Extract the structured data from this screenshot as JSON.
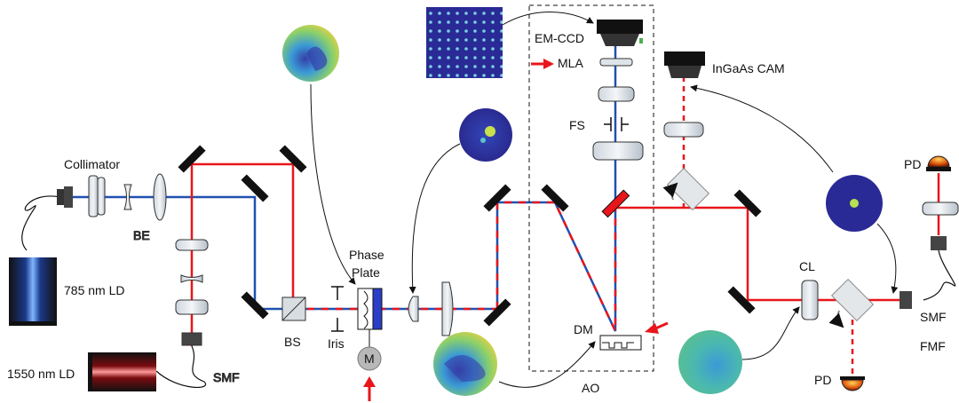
{
  "labels": {
    "collimator": "Collimator",
    "be": "BE",
    "ld785": "785 nm LD",
    "ld1550": "1550 nm LD",
    "smf_left": "SMF",
    "bs": "BS",
    "iris": "Iris",
    "phase_plate_1": "Phase",
    "phase_plate_2": "Plate",
    "motor": "M",
    "emccd": "EM-CCD",
    "mla": "MLA",
    "fs": "FS",
    "ingaas": "InGaAs CAM",
    "dm": "DM",
    "ao": "AO",
    "cl": "CL",
    "pd_top": "PD",
    "pd_bottom": "PD",
    "smf_right": "SMF",
    "fmf": "FMF"
  },
  "colors": {
    "red_beam": "#e8161b",
    "blue_beam": "#2050b0",
    "arrow_red": "#e8161b",
    "ld785_glow": "#3b7de8",
    "ld1550_glow": "#d0141c"
  }
}
